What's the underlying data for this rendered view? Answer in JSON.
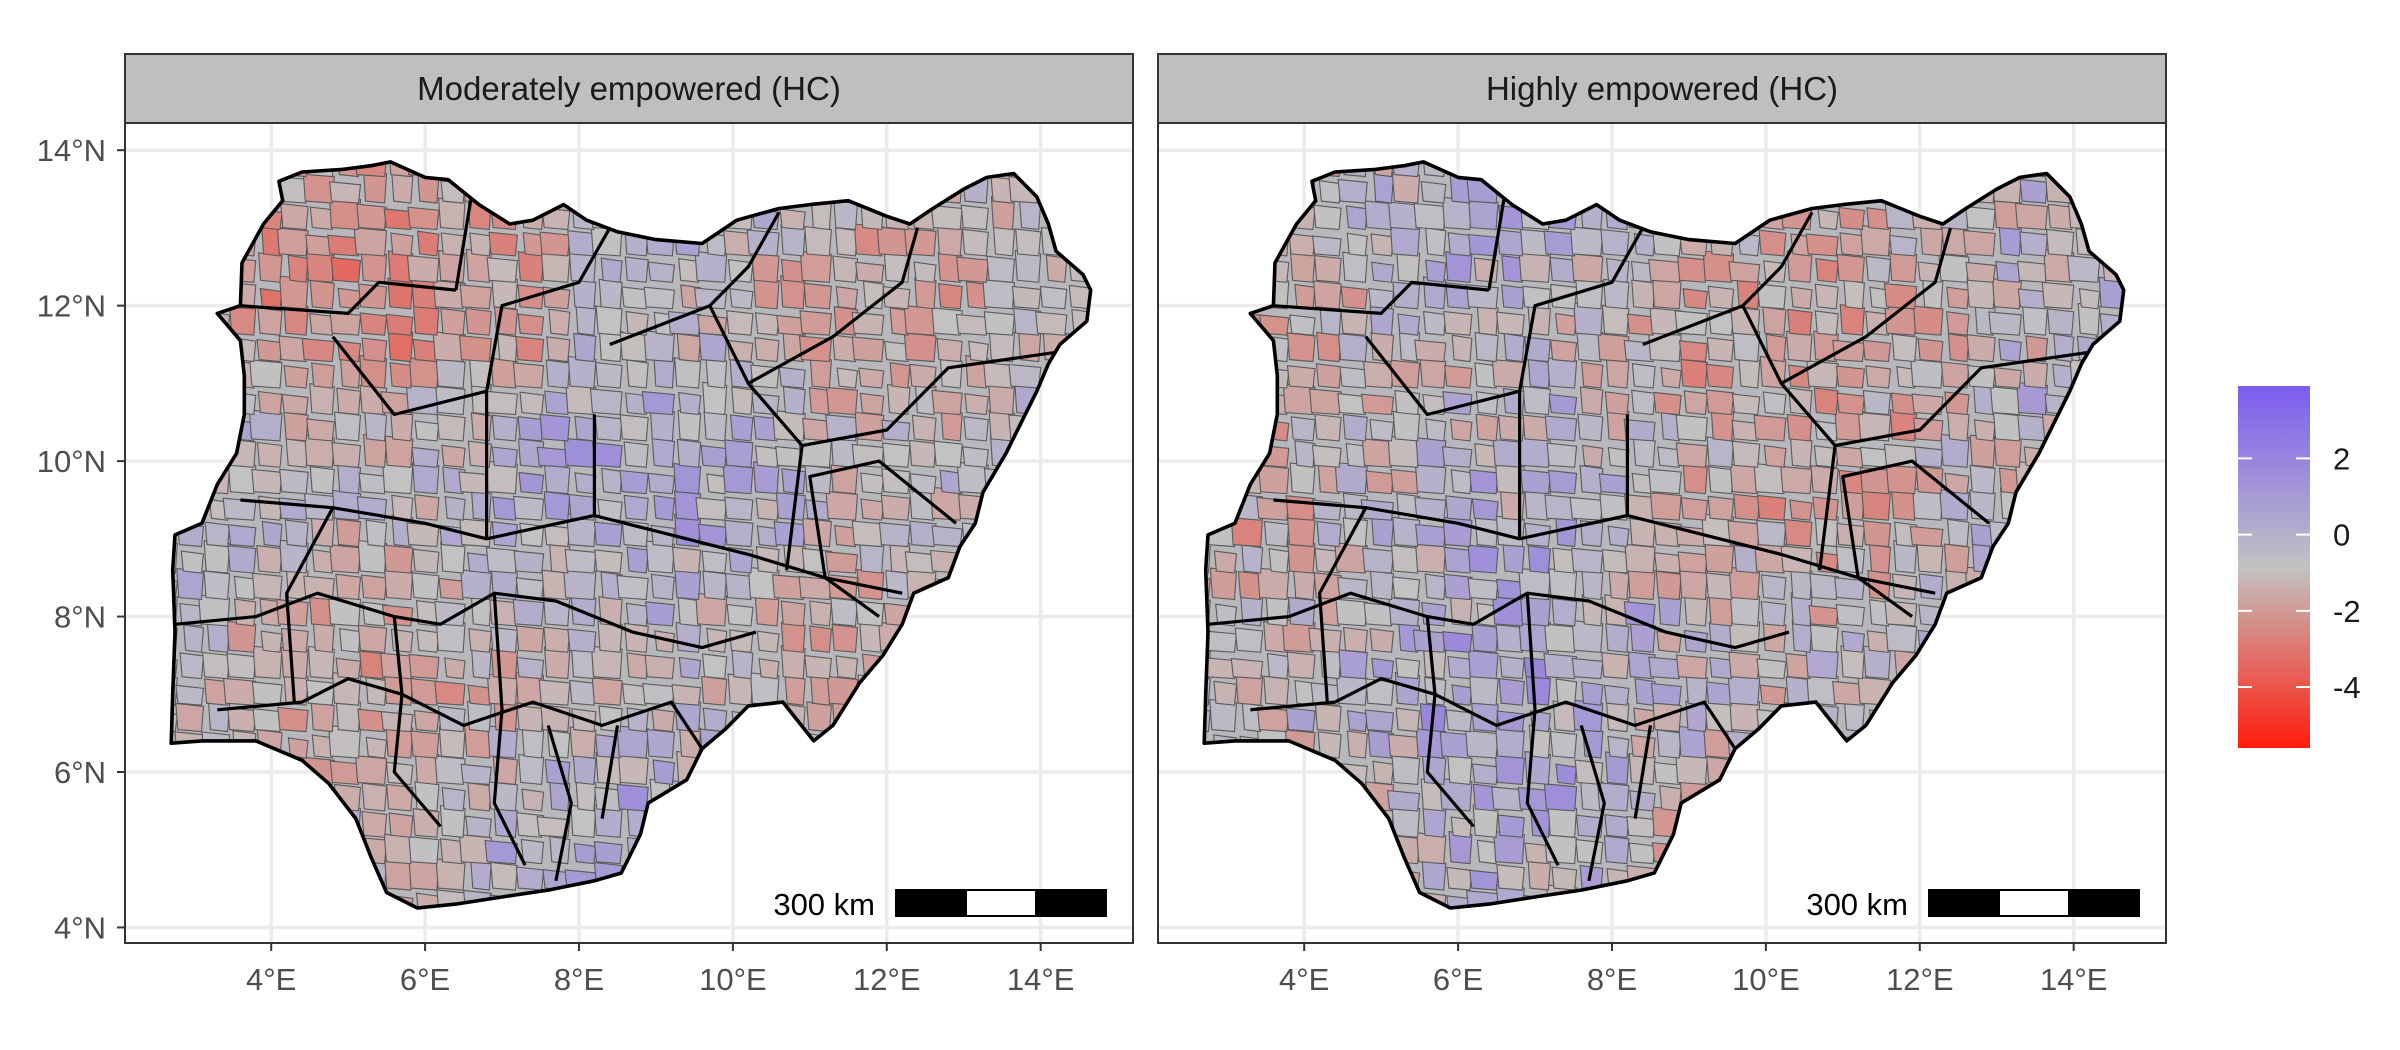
{
  "map": {
    "panels": [
      {
        "title": "Moderately empowered (HC)",
        "seed": 11
      },
      {
        "title": "Highly empowered (HC)",
        "seed": 37
      }
    ],
    "lat_ticks": [
      {
        "value": 14,
        "label": "14°N"
      },
      {
        "value": 12,
        "label": "12°N"
      },
      {
        "value": 10,
        "label": "10°N"
      },
      {
        "value": 8,
        "label": "8°N"
      },
      {
        "value": 6,
        "label": "6°N"
      },
      {
        "value": 4,
        "label": "4°N"
      }
    ],
    "lon_ticks": [
      {
        "value": 4,
        "label": "4°E"
      },
      {
        "value": 6,
        "label": "6°E"
      },
      {
        "value": 8,
        "label": "8°E"
      },
      {
        "value": 10,
        "label": "10°E"
      },
      {
        "value": 12,
        "label": "12°E"
      },
      {
        "value": 14,
        "label": "14°E"
      }
    ],
    "lon_range": [
      2.1,
      15.2
    ],
    "lat_range": [
      3.8,
      14.35
    ],
    "scale_bar": {
      "label": "300 km"
    },
    "legend": {
      "range": [
        -5.6,
        3.9
      ],
      "ticks": [
        {
          "value": 2,
          "label": "2"
        },
        {
          "value": 0,
          "label": "0"
        },
        {
          "value": -2,
          "label": "-2"
        },
        {
          "value": -4,
          "label": "-4"
        }
      ],
      "colors": {
        "high": "#7b5cf0",
        "mid": "#c2c2c2",
        "low": "#ff1c0c"
      }
    },
    "colors": {
      "strip_fill": "#bfbfbf",
      "panel_border": "#333333",
      "grid": "#ebebeb",
      "state_border": "#000000",
      "lga_border": "#5a5a5a"
    }
  }
}
